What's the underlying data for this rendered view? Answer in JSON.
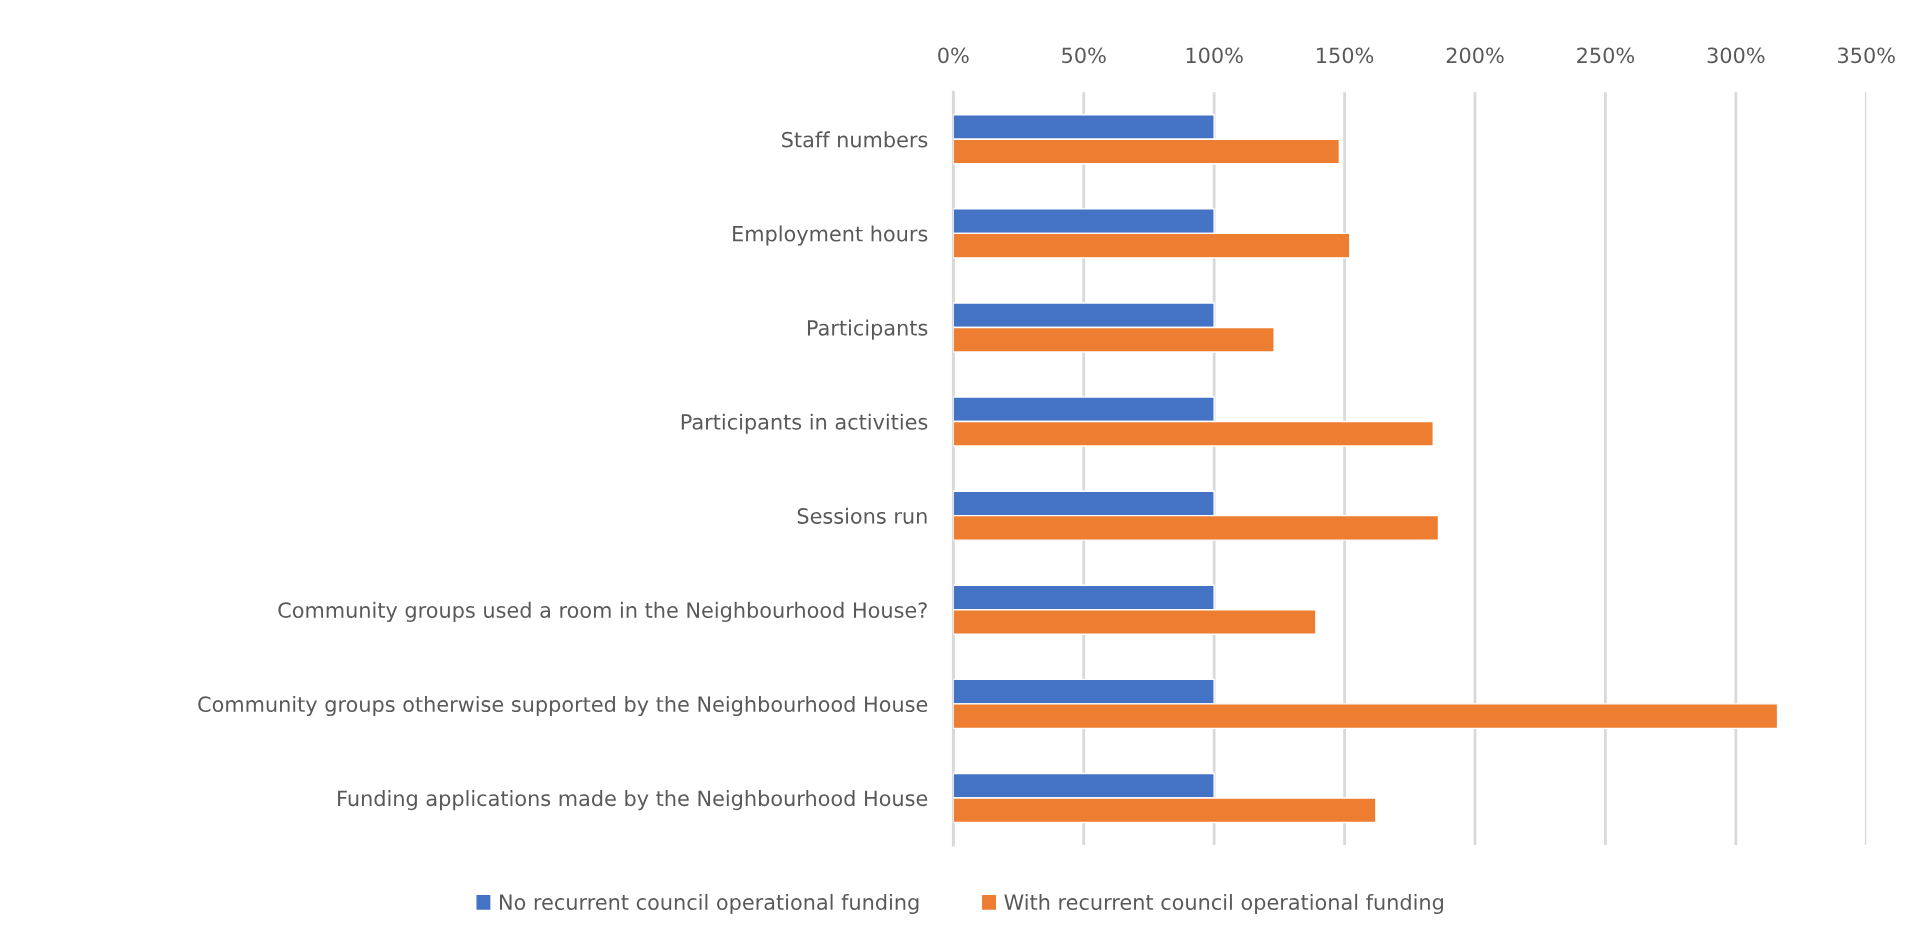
{
  "chart_data": {
    "type": "bar",
    "orientation": "horizontal",
    "categories": [
      "Staff numbers",
      "Employment hours",
      "Participants",
      "Participants in activities",
      "Sessions run",
      "Community groups used a room in the Neighbourhood House?",
      "Community groups otherwise supported by the Neighbourhood House",
      "Funding applications made by the Neighbourhood House"
    ],
    "series": [
      {
        "name": "No recurrent council operational funding",
        "color": "#4472c4",
        "values": [
          100,
          100,
          100,
          100,
          100,
          100,
          100,
          100
        ]
      },
      {
        "name": "With recurrent council operational funding",
        "color": "#ed7d31",
        "values": [
          148,
          152,
          123,
          184,
          186,
          139,
          316,
          162
        ]
      }
    ],
    "xlim": [
      0,
      350
    ],
    "xticks": [
      {
        "value": 0,
        "label": "0%"
      },
      {
        "value": 50,
        "label": "50%"
      },
      {
        "value": 100,
        "label": "100%"
      },
      {
        "value": 150,
        "label": "150%"
      },
      {
        "value": 200,
        "label": "200%"
      },
      {
        "value": 250,
        "label": "250%"
      },
      {
        "value": 300,
        "label": "300%"
      },
      {
        "value": 350,
        "label": "350%"
      }
    ],
    "grid": "x",
    "legend": "bottom"
  }
}
